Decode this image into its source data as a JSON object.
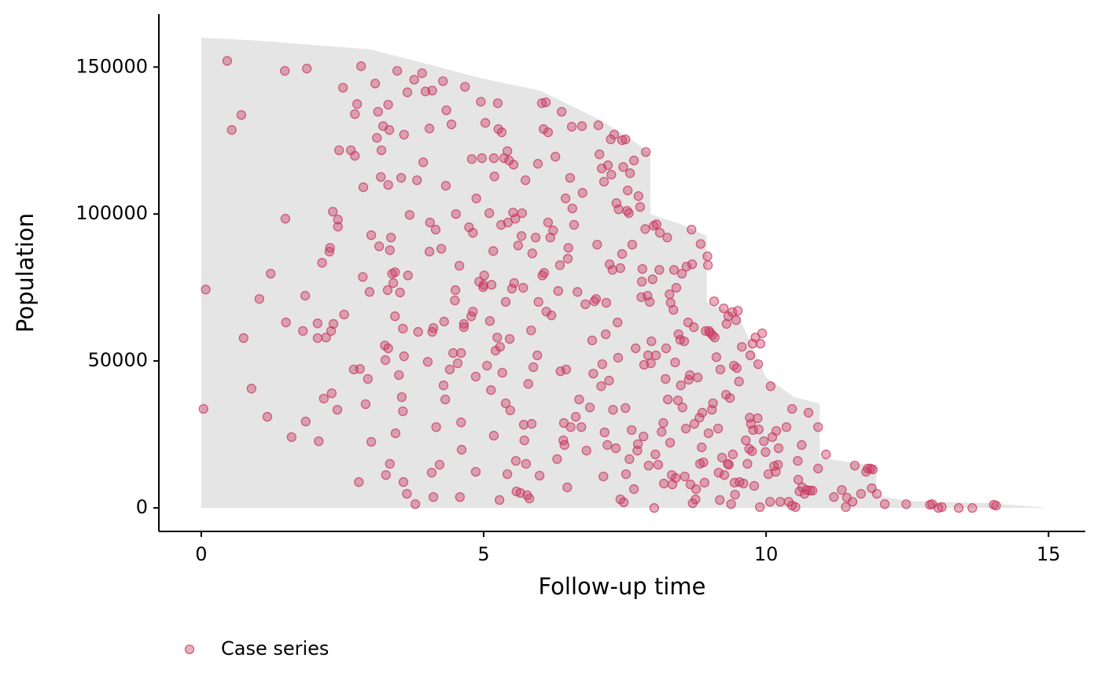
{
  "chart_data": {
    "type": "scatter",
    "xlabel": "Follow-up time",
    "ylabel": "Population",
    "xlim": [
      -0.75,
      15.65
    ],
    "ylim": [
      -8000,
      168000
    ],
    "xticks": [
      0,
      5,
      10,
      15
    ],
    "yticks": [
      0,
      50000,
      100000,
      150000
    ],
    "legend": "bottom-left",
    "area": {
      "color": "#e5e5e5",
      "x": [
        0,
        1,
        2,
        3,
        4,
        5,
        6,
        7,
        7.5,
        7.95,
        7.95,
        8.5,
        8.95,
        8.95,
        9.5,
        10,
        10.5,
        10.95,
        10.95,
        11.5,
        11.95,
        11.95,
        12.5,
        14,
        15
      ],
      "values": [
        160000,
        159000,
        157500,
        156000,
        151000,
        146000,
        142000,
        132600,
        127000,
        120600,
        100000,
        96500,
        92500,
        70000,
        65800,
        44400,
        37700,
        35500,
        17000,
        15500,
        14200,
        4300,
        2400,
        1600,
        0
      ]
    },
    "series": [
      {
        "name": "Case series",
        "color": "#c8385f",
        "x": [
          0.04,
          0.08,
          0.46,
          0.54,
          0.71,
          0.75,
          0.89,
          1.03,
          1.17,
          1.23,
          1.48,
          1.49,
          1.5,
          1.6,
          1.8,
          1.84,
          1.85,
          1.87,
          2.06,
          2.08,
          2.06,
          2.14,
          2.17,
          2.21,
          2.27,
          2.28,
          2.3,
          2.31,
          2.34,
          2.33,
          2.41,
          2.42,
          2.42,
          2.44,
          2.51,
          2.53,
          2.65,
          2.7,
          2.72,
          2.72,
          2.76,
          2.79,
          2.81,
          2.83,
          2.86,
          2.87,
          2.91,
          2.95,
          2.98,
          3.01,
          3.01,
          3.08,
          3.11,
          3.13,
          3.15,
          3.18,
          3.19,
          3.22,
          3.25,
          3.26,
          3.27,
          3.3,
          3.31,
          3.31,
          3.31,
          3.33,
          3.34,
          3.34,
          3.36,
          3.38,
          3.4,
          3.43,
          3.43,
          3.44,
          3.47,
          3.5,
          3.52,
          3.54,
          3.55,
          3.57,
          3.57,
          3.58,
          3.59,
          3.59,
          3.64,
          3.66,
          3.65,
          3.69,
          3.77,
          3.79,
          3.82,
          3.84,
          3.91,
          3.93,
          3.97,
          4.01,
          4.04,
          4.04,
          4.05,
          4.08,
          4.09,
          4.09,
          4.11,
          4.11,
          4.15,
          4.16,
          4.22,
          4.25,
          4.28,
          4.29,
          4.3,
          4.32,
          4.33,
          4.34,
          4.4,
          4.43,
          4.46,
          4.49,
          4.5,
          4.51,
          4.54,
          4.57,
          4.58,
          4.6,
          4.6,
          4.61,
          4.65,
          4.65,
          4.67,
          4.74,
          4.78,
          4.79,
          4.81,
          4.81,
          4.86,
          4.86,
          4.87,
          4.92,
          4.95,
          4.97,
          4.99,
          5,
          5.01,
          5.03,
          5.06,
          5.1,
          5.11,
          5.13,
          5.14,
          5.17,
          5.18,
          5.18,
          5.19,
          5.21,
          5.24,
          5.25,
          5.26,
          5.28,
          5.29,
          5.31,
          5.32,
          5.33,
          5.36,
          5.39,
          5.39,
          5.42,
          5.42,
          5.43,
          5.45,
          5.46,
          5.47,
          5.5,
          5.52,
          5.53,
          5.54,
          5.56,
          5.57,
          5.58,
          5.61,
          5.65,
          5.67,
          5.68,
          5.7,
          5.71,
          5.72,
          5.74,
          5.75,
          5.77,
          5.79,
          5.81,
          5.84,
          5.85,
          5.86,
          5.88,
          5.92,
          5.95,
          5.96,
          5.97,
          5.99,
          6.03,
          6.04,
          6.06,
          6.07,
          6.1,
          6.11,
          6.14,
          6.14,
          6.18,
          6.2,
          6.23,
          6.27,
          6.3,
          6.32,
          6.35,
          6.36,
          6.38,
          6.41,
          6.42,
          6.43,
          6.45,
          6.46,
          6.48,
          6.49,
          6.5,
          6.53,
          6.54,
          6.56,
          6.57,
          6.6,
          6.63,
          6.66,
          6.69,
          6.73,
          6.74,
          6.75,
          6.8,
          6.82,
          6.88,
          6.92,
          6.94,
          6.96,
          6.99,
          7.01,
          7.03,
          7.05,
          7.08,
          7.09,
          7.1,
          7.12,
          7.13,
          7.14,
          7.16,
          7.17,
          7.19,
          7.2,
          7.22,
          7.23,
          7.25,
          7.26,
          7.28,
          7.29,
          7.31,
          7.34,
          7.35,
          7.37,
          7.38,
          7.39,
          7.42,
          7.42,
          7.45,
          7.45,
          7.47,
          7.48,
          7.51,
          7.51,
          7.52,
          7.54,
          7.55,
          7.57,
          7.58,
          7.59,
          7.62,
          7.63,
          7.66,
          7.66,
          7.69,
          7.72,
          7.73,
          7.74,
          7.77,
          7.79,
          7.8,
          7.81,
          7.83,
          7.84,
          7.86,
          7.87,
          7.9,
          7.91,
          7.92,
          7.94,
          7.96,
          7.97,
          7.99,
          8.01,
          8.02,
          8.04,
          8.05,
          8.06,
          8.09,
          8.11,
          8.12,
          8.15,
          8.18,
          8.19,
          8.22,
          8.23,
          8.25,
          8.26,
          8.29,
          8.3,
          8.31,
          8.33,
          8.34,
          8.36,
          8.37,
          8.39,
          8.4,
          8.41,
          8.44,
          8.45,
          8.48,
          8.49,
          8.51,
          8.52,
          8.55,
          8.56,
          8.58,
          8.59,
          8.62,
          8.63,
          8.65,
          8.66,
          8.68,
          8.69,
          8.7,
          8.72,
          8.73,
          8.75,
          8.76,
          8.79,
          8.82,
          8.83,
          8.84,
          8.86,
          8.87,
          8.89,
          8.91,
          8.93,
          8.96,
          8.97,
          8.98,
          8.99,
          9.01,
          9.04,
          9.05,
          9.06,
          9.08,
          9.09,
          9.12,
          9.15,
          9.16,
          9.18,
          9.19,
          9.22,
          9.25,
          9.26,
          9.29,
          9.3,
          9.32,
          9.33,
          9.34,
          9.36,
          9.38,
          9.4,
          9.41,
          9.43,
          9.44,
          9.45,
          9.47,
          9.48,
          9.5,
          9.52,
          9.53,
          9.57,
          9.6,
          9.64,
          9.67,
          9.7,
          9.71,
          9.72,
          9.73,
          9.75,
          9.76,
          9.77,
          9.79,
          9.81,
          9.85,
          9.86,
          9.87,
          9.89,
          9.9,
          9.93,
          9.96,
          9.99,
          10.04,
          10.07,
          10.08,
          10.11,
          10.14,
          10.17,
          10.18,
          10.21,
          10.22,
          10.25,
          10.36,
          10.4,
          10.46,
          10.46,
          10.52,
          10.56,
          10.57,
          10.59,
          10.63,
          10.64,
          10.68,
          10.72,
          10.75,
          10.78,
          10.82,
          10.92,
          10.92,
          11.06,
          11.2,
          11.34,
          11.41,
          11.43,
          11.53,
          11.57,
          11.68,
          11.77,
          11.8,
          11.85,
          11.87,
          11.89,
          11.96,
          12.1,
          12.48,
          12.9,
          12.94,
          13.05,
          13.11,
          13.41,
          13.65,
          14.03,
          14.07
        ],
        "values": [
          33700,
          74300,
          152100,
          128600,
          133700,
          57800,
          40600,
          71100,
          31000,
          79700,
          148700,
          98400,
          63100,
          24100,
          60200,
          72200,
          29400,
          149500,
          62800,
          22700,
          57800,
          83400,
          37200,
          58000,
          87200,
          88500,
          60200,
          39000,
          62600,
          100800,
          33400,
          98100,
          95700,
          121700,
          143000,
          65800,
          121700,
          47100,
          119800,
          134000,
          137400,
          8800,
          47300,
          150300,
          78600,
          109100,
          35300,
          43900,
          73500,
          22500,
          92800,
          144400,
          125900,
          134800,
          89000,
          112600,
          121700,
          129900,
          55300,
          50300,
          11200,
          74100,
          137200,
          54300,
          109900,
          128600,
          87700,
          15000,
          92000,
          79700,
          76500,
          80200,
          65200,
          25400,
          148700,
          45200,
          73300,
          112300,
          37700,
          32900,
          61000,
          8800,
          127000,
          51600,
          4800,
          79100,
          141400,
          99700,
          145700,
          1300,
          111500,
          59900,
          147900,
          117600,
          141700,
          49700,
          87200,
          129100,
          97100,
          12000,
          142000,
          59900,
          3700,
          61200,
          94700,
          27500,
          14700,
          88200,
          145200,
          41700,
          63400,
          36900,
          109600,
          135300,
          47100,
          130500,
          52700,
          70600,
          74100,
          100000,
          49200,
          82400,
          3700,
          52700,
          29100,
          19800,
          62600,
          61500,
          143300,
          95500,
          65200,
          118700,
          93600,
          66800,
          12300,
          44700,
          105300,
          77000,
          138200,
          119000,
          75100,
          75900,
          79100,
          131000,
          48400,
          100300,
          63600,
          40100,
          75900,
          87400,
          119000,
          24600,
          112800,
          53500,
          58000,
          137700,
          128900,
          2700,
          54800,
          96300,
          127800,
          46000,
          119000,
          70100,
          35600,
          121400,
          11500,
          97100,
          118200,
          57500,
          33200,
          74600,
          100500,
          116800,
          76500,
          98400,
          16000,
          5600,
          89300,
          5100,
          92500,
          100300,
          74900,
          28300,
          23000,
          111500,
          15000,
          4300,
          42200,
          3200,
          60400,
          28600,
          86600,
          47900,
          92000,
          51900,
          117100,
          70100,
          11000,
          137700,
          79100,
          128900,
          80000,
          138000,
          66800,
          97100,
          127800,
          92000,
          65500,
          94400,
          119500,
          16600,
          73800,
          82600,
          46500,
          134800,
          23000,
          28900,
          21400,
          105300,
          47100,
          7000,
          84800,
          88500,
          112300,
          27500,
          129700,
          101900,
          96300,
          31000,
          73500,
          36900,
          27500,
          129900,
          107200,
          69300,
          19500,
          34200,
          57000,
          45700,
          70300,
          71100,
          89600,
          130200,
          120300,
          41400,
          115500,
          48900,
          10700,
          111000,
          25700,
          59100,
          69800,
          21400,
          116600,
          43300,
          82900,
          125400,
          113400,
          81000,
          33400,
          127000,
          20300,
          103700,
          63100,
          51100,
          101600,
          2900,
          81600,
          86400,
          125100,
          116000,
          1900,
          125400,
          34000,
          11500,
          101100,
          108000,
          100300,
          16600,
          113900,
          26500,
          89600,
          6400,
          118200,
          54300,
          19500,
          21700,
          106100,
          102400,
          71700,
          77000,
          81300,
          24300,
          48700,
          94900,
          121100,
          72200,
          51900,
          14400,
          70100,
          49200,
          56700,
          77800,
          96000,
          0,
          18200,
          51900,
          96500,
          14700,
          81000,
          93600,
          25900,
          28900,
          8300,
          43900,
          54300,
          92000,
          36900,
          72700,
          22200,
          69800,
          11200,
          8000,
          67400,
          81000,
          49500,
          10200,
          74900,
          36600,
          59100,
          57200,
          41700,
          79700,
          34200,
          56700,
          10700,
          27000,
          82100,
          63100,
          43600,
          45200,
          8000,
          94700,
          82900,
          1600,
          61500,
          28600,
          2900,
          6400,
          44400,
          30700,
          15000,
          89800,
          20600,
          32400,
          15500,
          8600,
          60200,
          85600,
          82600,
          25400,
          60200,
          59600,
          33400,
          58800,
          35600,
          70300,
          58000,
          51300,
          27000,
          12000,
          2700,
          47100,
          17100,
          67900,
          11200,
          38500,
          62600,
          15000,
          65200,
          14700,
          37400,
          1300,
          66600,
          18200,
          48400,
          8600,
          4500,
          63900,
          47600,
          67100,
          43000,
          8800,
          54800,
          8300,
          23000,
          15000,
          20100,
          30700,
          51900,
          28600,
          19300,
          55900,
          26500,
          7500,
          58000,
          30500,
          48900,
          26700,
          300,
          55900,
          59400,
          22700,
          19000,
          11500,
          2100,
          41400,
          24100,
          14200,
          12300,
          26200,
          14700,
          20300,
          2100,
          27500,
          2100,
          33700,
          800,
          300,
          16000,
          9600,
          5600,
          21400,
          7000,
          4800,
          6100,
          32400,
          5900,
          5900,
          27500,
          13400,
          18200,
          3700,
          6100,
          300,
          3500,
          2100,
          14400,
          4800,
          12300,
          13400,
          13400,
          6700,
          13100,
          4800,
          1300,
          1300,
          1100,
          1300,
          0,
          300,
          0,
          0,
          1100,
          800
        ]
      }
    ]
  }
}
